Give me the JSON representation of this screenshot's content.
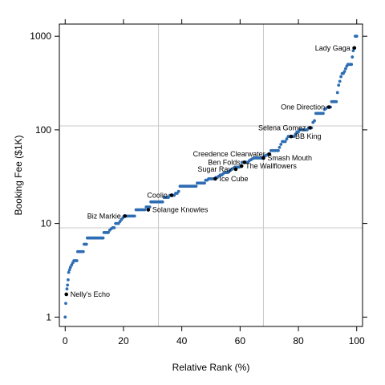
{
  "chart_data": {
    "type": "scatter",
    "title": "",
    "xlabel": "Relative Rank (%)",
    "ylabel": "Booking Fee ($1K)",
    "xlim": [
      -2,
      102
    ],
    "ylim_log10": [
      -0.1,
      3.13
    ],
    "log_y": true,
    "x_ticks": [
      0,
      20,
      40,
      60,
      80,
      100
    ],
    "x_tick_labels": [
      "0",
      "20",
      "40",
      "60",
      "80",
      "100"
    ],
    "y_ticks": [
      1,
      10,
      100,
      1000
    ],
    "y_tick_labels": [
      "1",
      "10",
      "100",
      "1000"
    ],
    "grid_x": [
      32,
      68
    ],
    "grid_y": [
      9,
      110
    ],
    "point_color": "#2e6db3",
    "highlight_color": "#000000",
    "series": [
      {
        "points": [
          [
            0,
            1
          ],
          [
            0.2,
            1.4
          ],
          [
            0.4,
            1.75
          ],
          [
            0.6,
            2.0
          ],
          [
            0.8,
            2.2
          ],
          [
            1.0,
            2.5
          ],
          [
            1.2,
            3.0
          ],
          [
            1.5,
            3.2
          ],
          [
            1.8,
            3.4
          ],
          [
            2.2,
            3.6
          ],
          [
            2.6,
            3.8
          ],
          [
            3.0,
            4.0
          ],
          [
            3.5,
            4.0
          ],
          [
            4.0,
            4.0
          ],
          [
            4.3,
            5
          ],
          [
            4.8,
            5
          ],
          [
            5.3,
            5
          ],
          [
            5.8,
            5
          ],
          [
            6.2,
            5
          ],
          [
            6.5,
            6
          ],
          [
            6.9,
            6
          ],
          [
            7.3,
            6
          ],
          [
            7.6,
            7
          ],
          [
            8.2,
            7
          ],
          [
            8.8,
            7
          ],
          [
            9.4,
            7
          ],
          [
            10.0,
            7
          ],
          [
            10.6,
            7
          ],
          [
            11.2,
            7
          ],
          [
            11.8,
            7
          ],
          [
            12.4,
            7
          ],
          [
            13.0,
            7
          ],
          [
            13.3,
            8
          ],
          [
            13.8,
            8
          ],
          [
            14.3,
            8
          ],
          [
            14.8,
            8
          ],
          [
            15.3,
            8.5
          ],
          [
            15.8,
            8.8
          ],
          [
            16.3,
            9
          ],
          [
            16.8,
            9
          ],
          [
            17.3,
            10
          ],
          [
            17.8,
            10
          ],
          [
            18.3,
            10
          ],
          [
            18.8,
            10.5
          ],
          [
            19.3,
            11
          ],
          [
            19.8,
            11.5
          ],
          [
            20.2,
            12
          ],
          [
            20.8,
            12
          ],
          [
            21.4,
            12
          ],
          [
            22.0,
            12
          ],
          [
            22.6,
            12
          ],
          [
            23.2,
            12
          ],
          [
            23.8,
            12
          ],
          [
            24.3,
            14
          ],
          [
            24.9,
            14
          ],
          [
            25.5,
            14
          ],
          [
            26.1,
            14
          ],
          [
            26.7,
            14
          ],
          [
            27.3,
            14
          ],
          [
            27.8,
            15
          ],
          [
            28.4,
            15
          ],
          [
            29.0,
            15
          ],
          [
            29.4,
            17
          ],
          [
            29.9,
            17
          ],
          [
            30.4,
            17
          ],
          [
            30.9,
            17
          ],
          [
            31.4,
            17
          ],
          [
            31.9,
            17
          ],
          [
            32.4,
            17
          ],
          [
            32.9,
            17
          ],
          [
            33.4,
            17
          ],
          [
            33.9,
            19
          ],
          [
            34.4,
            19
          ],
          [
            34.9,
            19
          ],
          [
            35.4,
            19
          ],
          [
            35.9,
            20
          ],
          [
            36.4,
            20
          ],
          [
            36.9,
            20
          ],
          [
            37.4,
            20
          ],
          [
            37.9,
            21
          ],
          [
            38.4,
            21
          ],
          [
            38.9,
            22
          ],
          [
            39.4,
            25
          ],
          [
            39.9,
            25
          ],
          [
            40.4,
            25
          ],
          [
            40.9,
            25
          ],
          [
            41.4,
            25
          ],
          [
            41.9,
            25
          ],
          [
            42.4,
            25
          ],
          [
            42.9,
            25
          ],
          [
            43.4,
            25
          ],
          [
            43.9,
            25
          ],
          [
            44.4,
            25
          ],
          [
            44.9,
            25
          ],
          [
            45.3,
            27
          ],
          [
            45.8,
            27
          ],
          [
            46.3,
            27
          ],
          [
            46.8,
            27
          ],
          [
            47.3,
            27
          ],
          [
            47.8,
            27
          ],
          [
            48.2,
            29
          ],
          [
            48.7,
            29
          ],
          [
            49.2,
            30
          ],
          [
            49.7,
            30
          ],
          [
            50.2,
            30
          ],
          [
            50.7,
            30
          ],
          [
            51.2,
            30
          ],
          [
            51.7,
            31
          ],
          [
            52.2,
            31
          ],
          [
            52.7,
            32
          ],
          [
            53.2,
            33
          ],
          [
            53.7,
            33
          ],
          [
            54.2,
            34
          ],
          [
            54.7,
            35
          ],
          [
            55.2,
            35
          ],
          [
            55.7,
            35
          ],
          [
            56.2,
            36
          ],
          [
            56.7,
            37
          ],
          [
            57.2,
            38
          ],
          [
            57.7,
            39
          ],
          [
            58.2,
            40
          ],
          [
            58.7,
            40
          ],
          [
            59.2,
            40
          ],
          [
            59.7,
            40
          ],
          [
            60.2,
            41
          ],
          [
            60.7,
            45
          ],
          [
            61.2,
            45
          ],
          [
            61.7,
            45
          ],
          [
            62.2,
            45
          ],
          [
            62.7,
            45
          ],
          [
            63.2,
            47
          ],
          [
            63.7,
            48
          ],
          [
            64.2,
            49
          ],
          [
            64.7,
            50
          ],
          [
            65.2,
            50
          ],
          [
            65.7,
            50
          ],
          [
            66.2,
            50
          ],
          [
            66.7,
            50
          ],
          [
            67.2,
            50
          ],
          [
            67.7,
            50
          ],
          [
            68.2,
            52
          ],
          [
            68.7,
            53
          ],
          [
            69.2,
            54
          ],
          [
            69.7,
            55
          ],
          [
            70.2,
            55
          ],
          [
            70.6,
            60
          ],
          [
            71.1,
            60
          ],
          [
            71.6,
            60
          ],
          [
            72.1,
            60
          ],
          [
            72.6,
            60
          ],
          [
            73.1,
            60
          ],
          [
            73.5,
            65
          ],
          [
            74.0,
            70
          ],
          [
            74.5,
            75
          ],
          [
            75.0,
            75
          ],
          [
            75.5,
            75
          ],
          [
            76.0,
            80
          ],
          [
            76.5,
            85
          ],
          [
            77.0,
            85
          ],
          [
            77.5,
            85
          ],
          [
            78.0,
            85
          ],
          [
            78.5,
            85
          ],
          [
            79.0,
            90
          ],
          [
            79.5,
            95
          ],
          [
            80.0,
            95
          ],
          [
            80.5,
            100
          ],
          [
            81.0,
            100
          ],
          [
            81.5,
            100
          ],
          [
            82.0,
            100
          ],
          [
            82.5,
            100
          ],
          [
            83.0,
            100
          ],
          [
            83.5,
            105
          ],
          [
            84.0,
            105
          ],
          [
            84.5,
            105
          ],
          [
            85.0,
            120
          ],
          [
            85.5,
            125
          ],
          [
            86.0,
            150
          ],
          [
            86.5,
            150
          ],
          [
            87.0,
            150
          ],
          [
            87.5,
            150
          ],
          [
            88.0,
            150
          ],
          [
            88.5,
            150
          ],
          [
            89.0,
            165
          ],
          [
            89.5,
            170
          ],
          [
            90.0,
            175
          ],
          [
            90.5,
            175
          ],
          [
            91.0,
            175
          ],
          [
            91.4,
            200
          ],
          [
            91.8,
            200
          ],
          [
            92.2,
            200
          ],
          [
            92.6,
            200
          ],
          [
            93.0,
            200
          ],
          [
            93.4,
            250
          ],
          [
            93.8,
            300
          ],
          [
            94.2,
            330
          ],
          [
            94.6,
            370
          ],
          [
            95.0,
            400
          ],
          [
            95.4,
            400
          ],
          [
            95.8,
            420
          ],
          [
            96.2,
            450
          ],
          [
            96.6,
            480
          ],
          [
            97.0,
            500
          ],
          [
            97.4,
            500
          ],
          [
            97.8,
            500
          ],
          [
            98.2,
            500
          ],
          [
            98.5,
            600
          ],
          [
            98.8,
            700
          ],
          [
            99.0,
            750
          ],
          [
            99.2,
            750
          ],
          [
            99.5,
            1000
          ],
          [
            99.8,
            1000
          ],
          [
            100,
            1000
          ]
        ]
      }
    ],
    "annotations": [
      {
        "label": "Lady Gaga",
        "x": 99.2,
        "y": 750,
        "side": "left"
      },
      {
        "label": "One Direction",
        "x": 90.5,
        "y": 175,
        "side": "left"
      },
      {
        "label": "Selena Gomez",
        "x": 84.0,
        "y": 105,
        "side": "left"
      },
      {
        "label": "BB King",
        "x": 77.5,
        "y": 85,
        "side": "right"
      },
      {
        "label": "Creedence Clearwater",
        "x": 70.0,
        "y": 55,
        "side": "left"
      },
      {
        "label": "Smash Mouth",
        "x": 68.0,
        "y": 50,
        "side": "right"
      },
      {
        "label": "Ben Folds",
        "x": 61.5,
        "y": 45,
        "side": "left"
      },
      {
        "label": "The Wallflowers",
        "x": 60.5,
        "y": 41,
        "side": "right"
      },
      {
        "label": "Sugar Ray",
        "x": 58.5,
        "y": 38,
        "side": "left"
      },
      {
        "label": "Ice Cube",
        "x": 51.5,
        "y": 30,
        "side": "right"
      },
      {
        "label": "Coolio",
        "x": 36.5,
        "y": 20,
        "side": "left"
      },
      {
        "label": "Solange Knowles",
        "x": 28.5,
        "y": 14,
        "side": "right"
      },
      {
        "label": "Biz Markie",
        "x": 20.5,
        "y": 12,
        "side": "left"
      },
      {
        "label": "Nelly's Echo",
        "x": 0.4,
        "y": 1.75,
        "side": "right"
      }
    ]
  }
}
